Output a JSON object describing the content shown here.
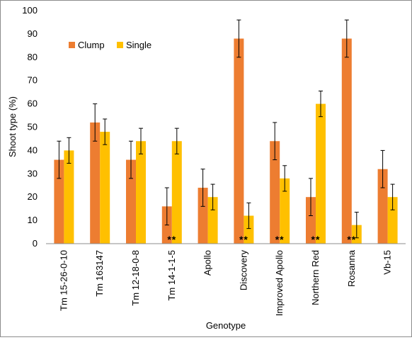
{
  "chart_data": {
    "type": "bar",
    "xlabel": "Genotype",
    "ylabel": "Shoot type  (%)",
    "ylim": [
      0,
      100
    ],
    "yticks": [
      0,
      10,
      20,
      30,
      40,
      50,
      60,
      70,
      80,
      90,
      100
    ],
    "grid": false,
    "legend_position": "top-left",
    "categories": [
      "Tm 15-26-0-10",
      "Tm 163147",
      "Tm 12-18-0-8",
      "Tm 14-1-1-5",
      "Apollo",
      "Discovery",
      "Improved Apollo",
      "Northern Red",
      "Rosanna",
      "Vb-15"
    ],
    "series": [
      {
        "name": "Clump",
        "color": "#ED7D31",
        "values": [
          36,
          52,
          36,
          16,
          24,
          88,
          44,
          20,
          88,
          32
        ],
        "error": [
          8,
          8,
          8,
          8,
          8,
          8,
          8,
          8,
          8,
          8
        ]
      },
      {
        "name": "Single",
        "color": "#FFC000",
        "values": [
          40,
          48,
          44,
          44,
          20,
          12,
          28,
          60,
          8,
          20
        ],
        "error": [
          5.5,
          5.5,
          5.5,
          5.5,
          5.5,
          5.5,
          5.5,
          5.5,
          5.5,
          5.5
        ]
      }
    ],
    "significance_marker": "**",
    "significant_categories": [
      "Tm 14-1-1-5",
      "Discovery",
      "Improved Apollo",
      "Northern Red",
      "Rosanna"
    ]
  }
}
